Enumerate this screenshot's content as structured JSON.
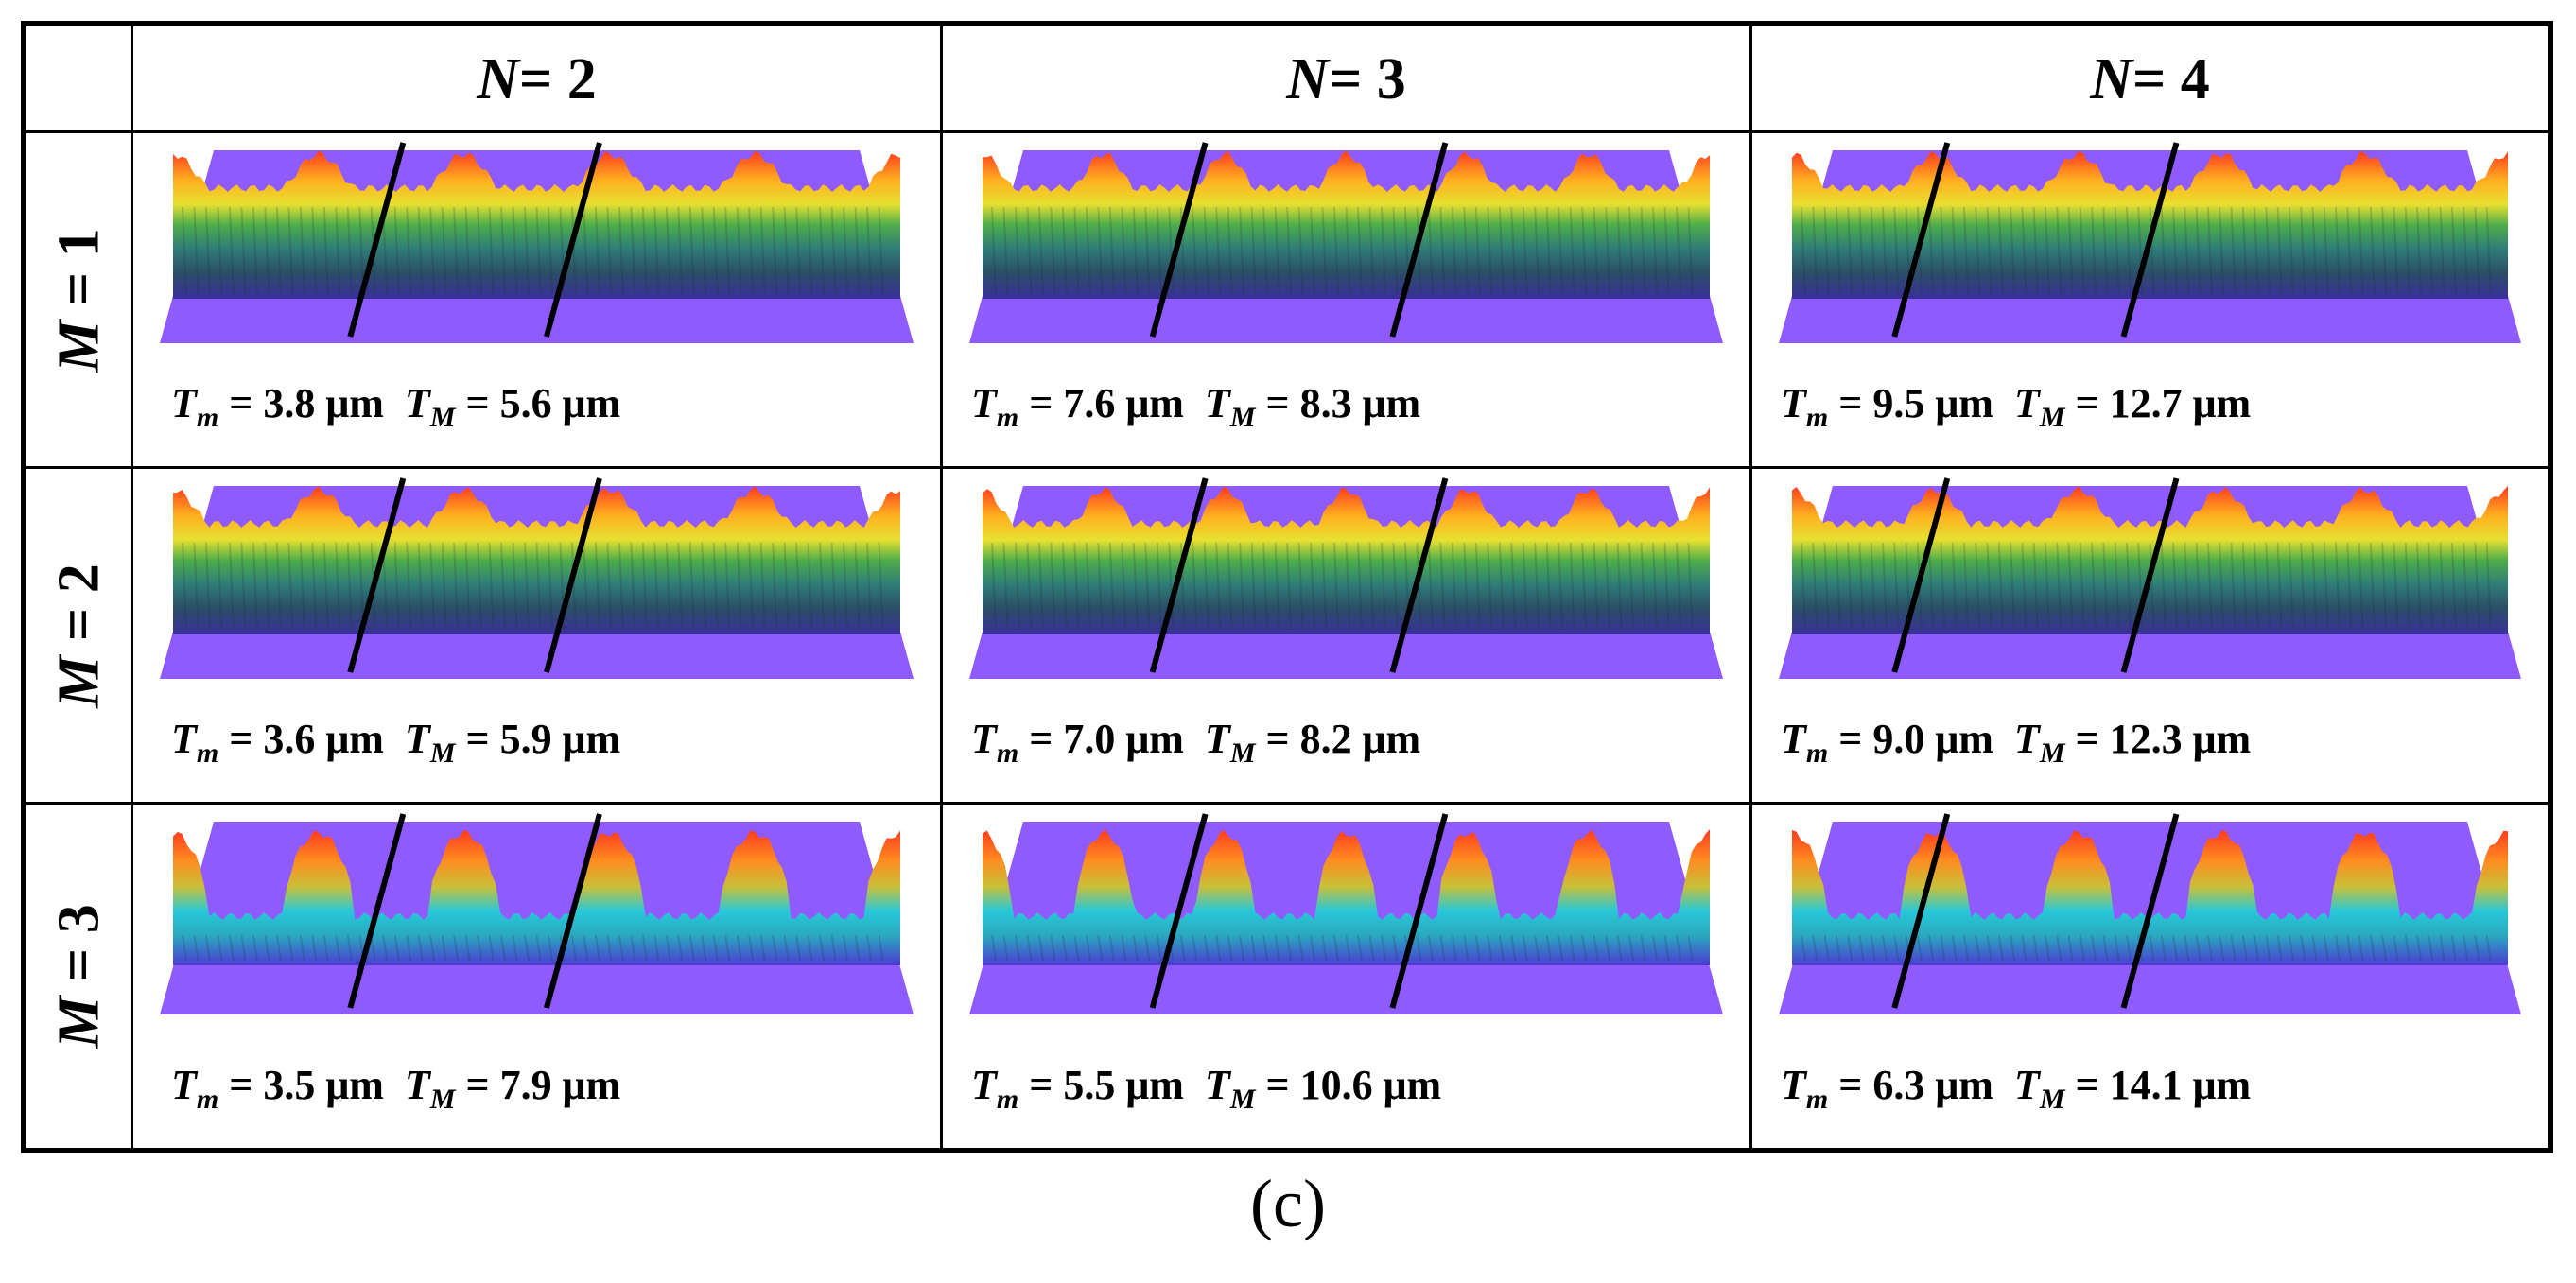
{
  "header": {
    "corner": "",
    "columns": [
      {
        "var": "N",
        "eq": " = 2"
      },
      {
        "var": "N",
        "eq": " = 3"
      },
      {
        "var": "N",
        "eq": " = 4"
      }
    ],
    "rows": [
      {
        "var": "M",
        "eq": " = 1"
      },
      {
        "var": "M",
        "eq": " = 2"
      },
      {
        "var": "M",
        "eq": " = 3"
      }
    ]
  },
  "cells": [
    [
      {
        "tm": "3.8",
        "tM": "5.6"
      },
      {
        "tm": "7.6",
        "tM": "8.3"
      },
      {
        "tm": "9.5",
        "tM": "12.7"
      }
    ],
    [
      {
        "tm": "3.6",
        "tM": "5.9"
      },
      {
        "tm": "7.0",
        "tM": "8.2"
      },
      {
        "tm": "9.0",
        "tM": "12.3"
      }
    ],
    [
      {
        "tm": "3.5",
        "tM": "7.9"
      },
      {
        "tm": "5.5",
        "tM": "10.6"
      },
      {
        "tm": "6.3",
        "tM": "14.1"
      }
    ]
  ],
  "symbols": {
    "T": "T",
    "m": "m",
    "M": "M",
    "eq": " = ",
    "unit": " μm"
  },
  "panel_label": "(c)",
  "colors": {
    "base": "#8f5bff",
    "peak": "#ff3a1e",
    "line": "#000000"
  }
}
